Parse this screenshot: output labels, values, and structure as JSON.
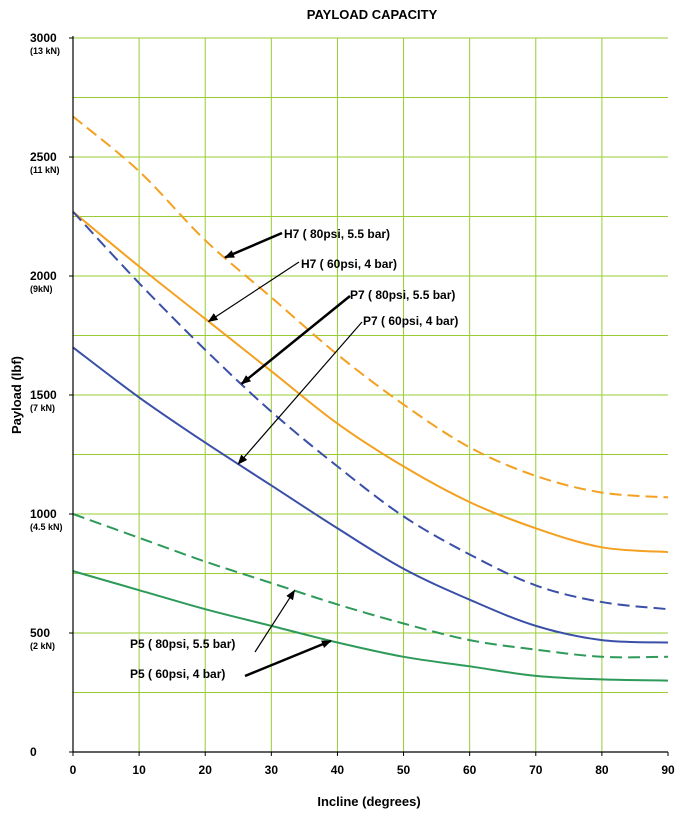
{
  "chart_data": {
    "type": "line",
    "title": "PAYLOAD CAPACITY",
    "xlabel": "Incline (degrees)",
    "ylabel": "Payload (lbf)",
    "xlim": [
      0,
      90
    ],
    "ylim": [
      0,
      3000
    ],
    "grid": true,
    "x_ticks": [
      "0",
      "10",
      "20",
      "30",
      "40",
      "50",
      "60",
      "70",
      "80",
      "90"
    ],
    "y_ticks": [
      {
        "value": 0,
        "label": "0",
        "sub": ""
      },
      {
        "value": 500,
        "label": "500",
        "sub": "(2 kN)"
      },
      {
        "value": 1000,
        "label": "1000",
        "sub": "(4.5 kN)"
      },
      {
        "value": 1500,
        "label": "1500",
        "sub": "(7 kN)"
      },
      {
        "value": 2000,
        "label": "2000",
        "sub": "(9kN)"
      },
      {
        "value": 2500,
        "label": "2500",
        "sub": "(11 kN)"
      },
      {
        "value": 3000,
        "label": "3000",
        "sub": "(13 kN)"
      }
    ],
    "x": [
      0,
      10,
      20,
      30,
      40,
      50,
      60,
      70,
      80,
      90
    ],
    "series": [
      {
        "name": "H7 ( 80psi, 5.5 bar)",
        "color": "#F4A020",
        "dash": "dashed",
        "values": [
          2670,
          2440,
          2150,
          1910,
          1670,
          1460,
          1280,
          1160,
          1090,
          1070
        ]
      },
      {
        "name": "H7 ( 60psi, 4 bar)",
        "color": "#F4A020",
        "dash": "solid",
        "values": [
          2270,
          2040,
          1820,
          1600,
          1380,
          1200,
          1050,
          940,
          860,
          840
        ]
      },
      {
        "name": "P7 ( 80psi, 5.5 bar)",
        "color": "#3A4FA8",
        "dash": "dashed",
        "values": [
          2270,
          1970,
          1690,
          1430,
          1200,
          990,
          830,
          700,
          630,
          600
        ]
      },
      {
        "name": "P7 ( 60psi, 4 bar)",
        "color": "#3A4FA8",
        "dash": "solid",
        "values": [
          1700,
          1490,
          1300,
          1120,
          940,
          770,
          640,
          530,
          470,
          460
        ]
      },
      {
        "name": "P5 ( 80psi, 5.5 bar)",
        "color": "#2E9A5A",
        "dash": "dashed",
        "values": [
          1000,
          900,
          800,
          710,
          620,
          540,
          470,
          430,
          400,
          400
        ]
      },
      {
        "name": "P5 ( 60psi, 4 bar)",
        "color": "#2E9A5A",
        "dash": "solid",
        "values": [
          760,
          680,
          600,
          530,
          460,
          400,
          360,
          320,
          305,
          300
        ]
      }
    ],
    "annotations": [
      {
        "text": "H7 ( 80psi, 5.5 bar)",
        "series": 0,
        "point_x": 23
      },
      {
        "text": "H7 ( 60psi, 4 bar)",
        "series": 1,
        "point_x": 20.5
      },
      {
        "text": "P7 ( 80psi, 5.5 bar)",
        "series": 2,
        "point_x": 25.5
      },
      {
        "text": "P7 ( 60psi, 4 bar)",
        "series": 3,
        "point_x": 25
      },
      {
        "text": "P5 ( 80psi, 5.5 bar)",
        "series": 4,
        "point_x": 33.5
      },
      {
        "text": "P5 ( 60psi, 4 bar)",
        "series": 5,
        "point_x": 39
      }
    ]
  }
}
